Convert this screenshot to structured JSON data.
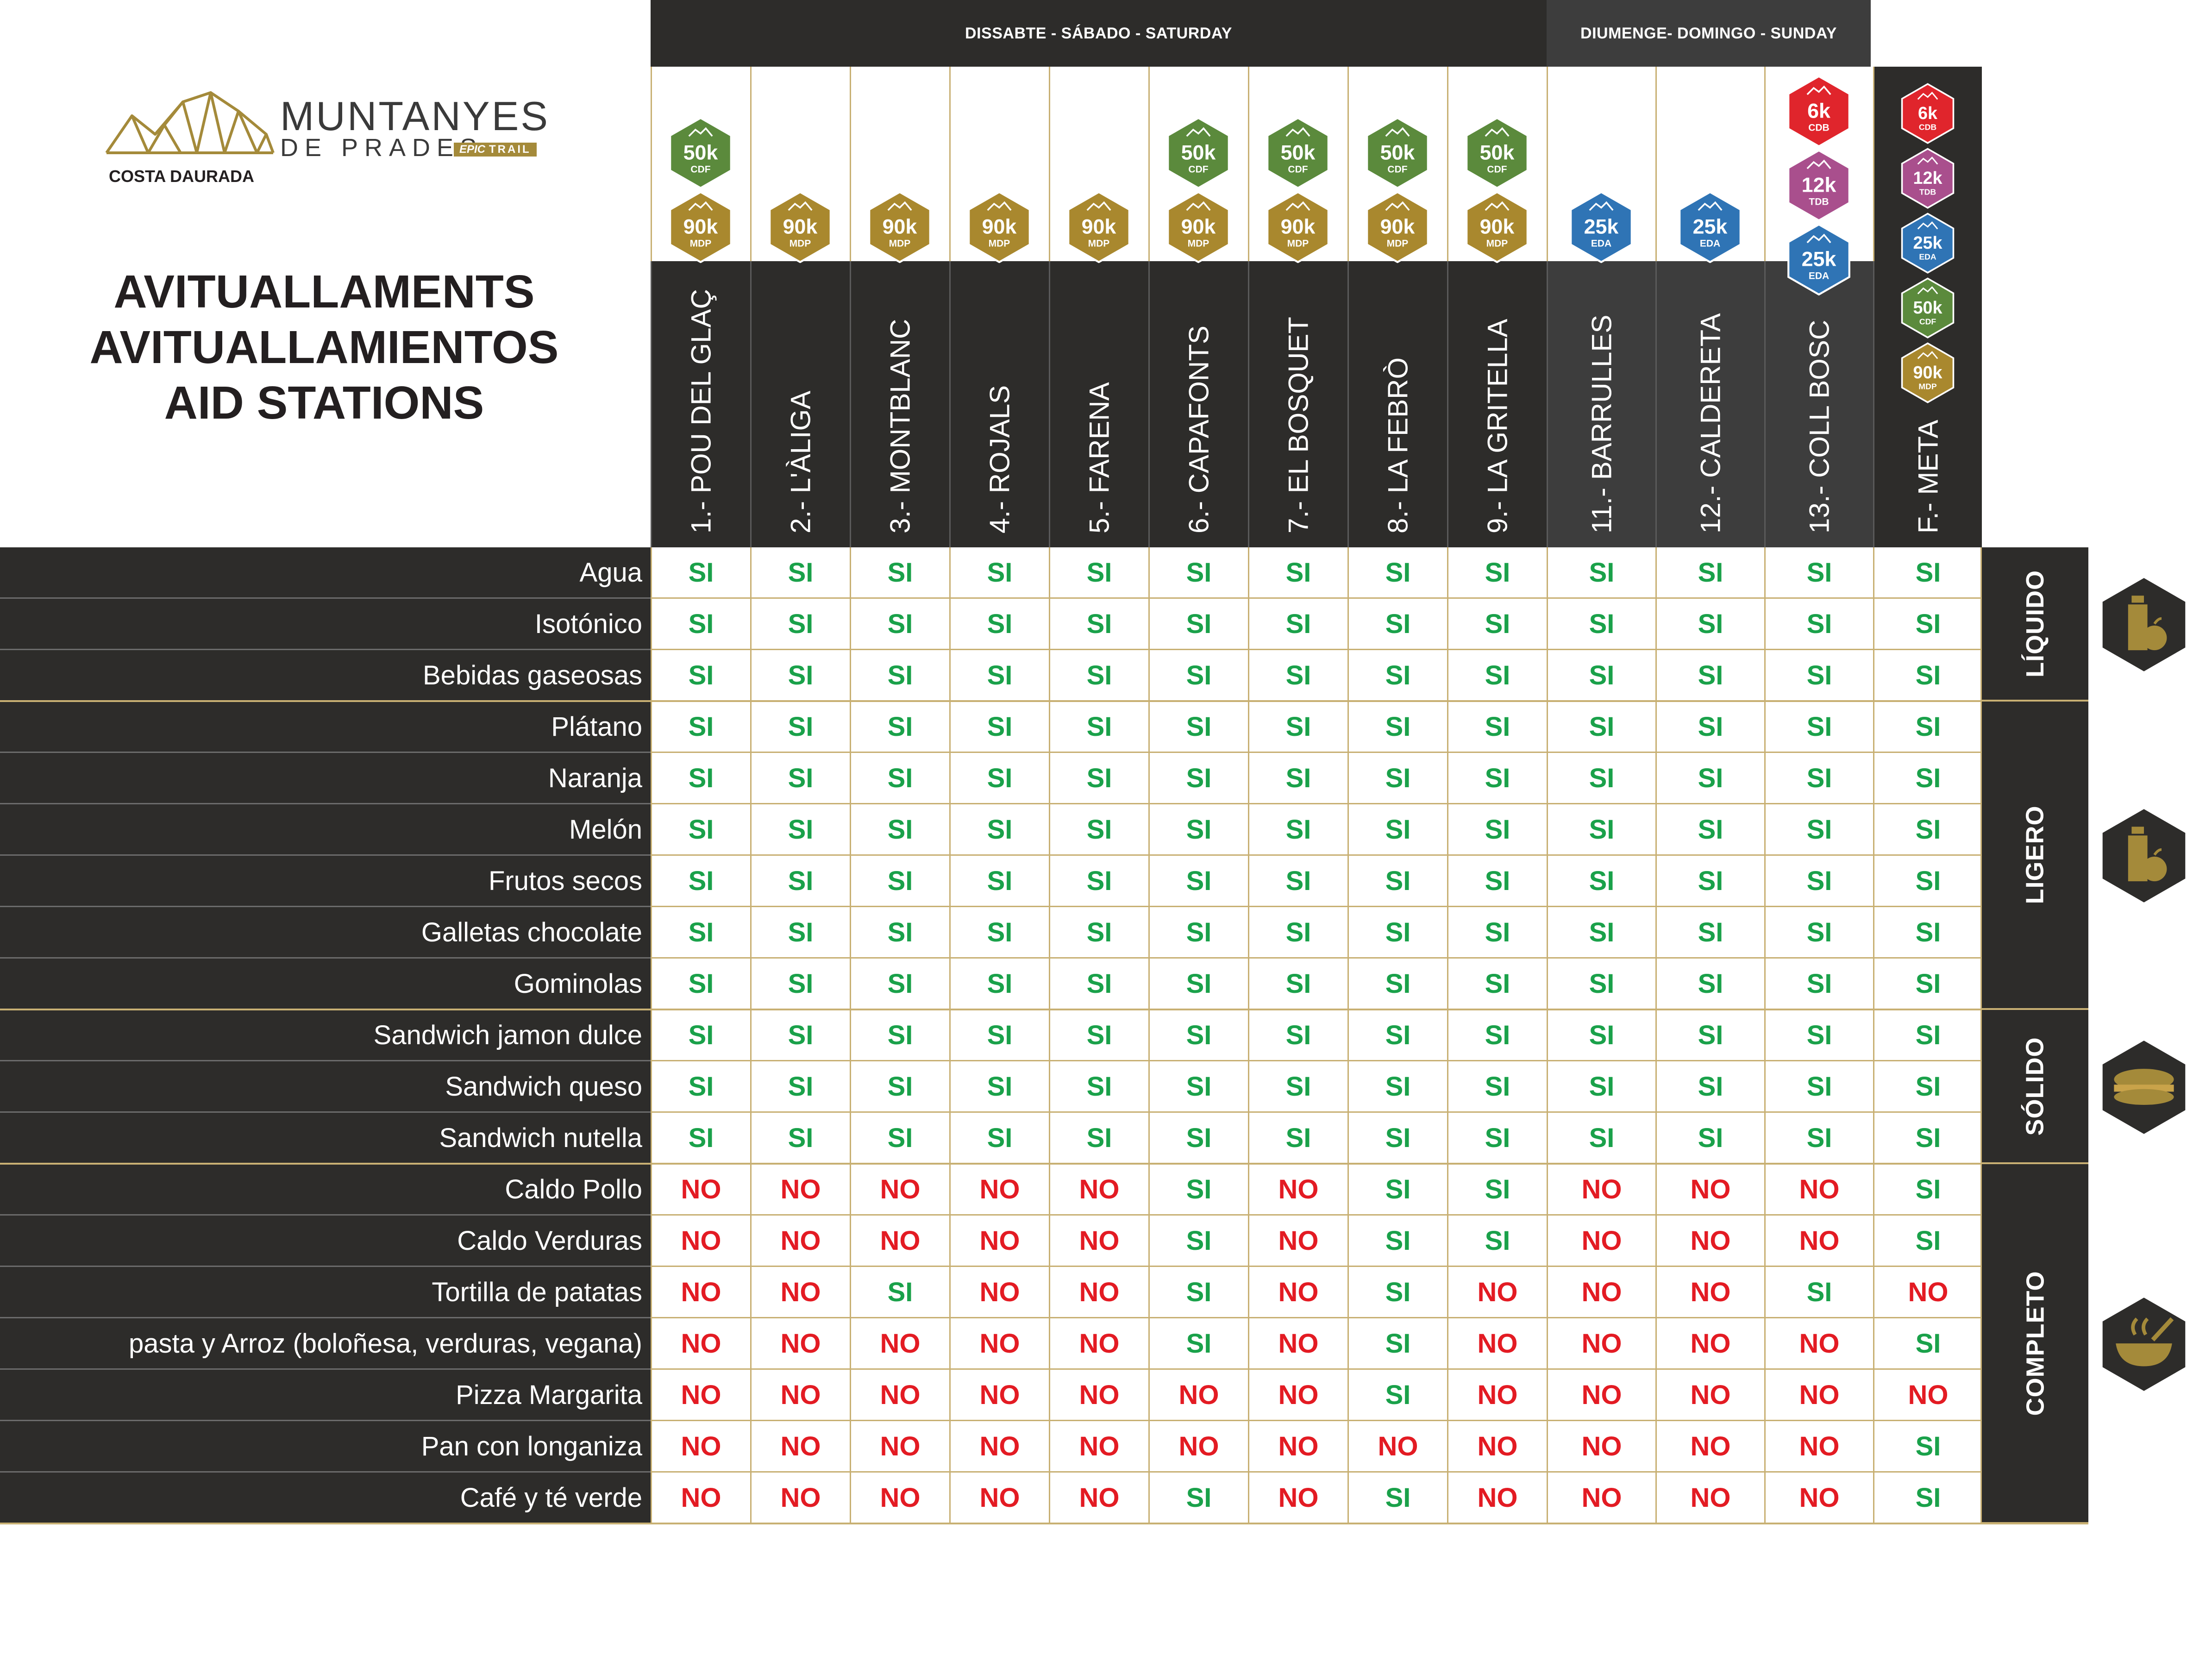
{
  "logo": {
    "brand_line1": "MUNTANYES",
    "brand_line2": "DE PRADES",
    "badge_epic": "EPIC",
    "badge_trail": "TRAIL",
    "region": "COSTA DAURADA"
  },
  "title": {
    "line1": "AVITUALLAMENTS",
    "line2": "AVITUALLAMIENTOS",
    "line3": "AID STATIONS"
  },
  "days": {
    "saturday": "DISSABTE - SÁBADO - SATURDAY",
    "sunday": "DIUMENGE- DOMINGO - SUNDAY"
  },
  "colors": {
    "dark": "#2d2c2a",
    "sunday_gray": "#3d3d3d",
    "gold": "#a48a3a",
    "gridline": "#c8b073",
    "si_green": "#1aa14a",
    "no_red": "#e31b23",
    "race_50k": "#5b8a3c",
    "race_90k": "#a9882e",
    "race_25k": "#2f74b5",
    "race_12k": "#a94f8d",
    "race_6k": "#e0252c"
  },
  "races": {
    "6k": {
      "label": "6k",
      "code": "CDB"
    },
    "12k": {
      "label": "12k",
      "code": "TDB"
    },
    "25k": {
      "label": "25k",
      "code": "EDA"
    },
    "50k": {
      "label": "50k",
      "code": "CDF"
    },
    "90k": {
      "label": "90k",
      "code": "MDP"
    }
  },
  "stations": [
    {
      "name": "1.- POU DEL GLAÇ",
      "races": [
        "50k",
        "90k"
      ]
    },
    {
      "name": "2.- L'ÀLIGA",
      "races": [
        "90k"
      ]
    },
    {
      "name": "3.- MONTBLANC",
      "races": [
        "90k"
      ]
    },
    {
      "name": "4.- ROJALS",
      "races": [
        "90k"
      ]
    },
    {
      "name": "5.- FARENA",
      "races": [
        "90k"
      ]
    },
    {
      "name": "6.- CAPAFONTS",
      "races": [
        "50k",
        "90k"
      ]
    },
    {
      "name": "7.- EL BOSQUET",
      "races": [
        "50k",
        "90k"
      ]
    },
    {
      "name": "8.- LA FEBRÒ",
      "races": [
        "50k",
        "90k"
      ]
    },
    {
      "name": "9.- LA GRITELLA",
      "races": [
        "50k",
        "90k"
      ]
    },
    {
      "name": "11.- BARRULLES",
      "races": [
        "25k"
      ]
    },
    {
      "name": "12.- CALDERETA",
      "races": [
        "25k"
      ]
    },
    {
      "name": "13.- COLL  BOSC",
      "races": [
        "6k",
        "12k",
        "25k"
      ]
    },
    {
      "name": "F.- META",
      "races": [
        "6k",
        "12k",
        "25k",
        "50k",
        "90k"
      ]
    }
  ],
  "categories": [
    {
      "label": "LÍQUIDO",
      "icon": "drink-icon",
      "rows": 3
    },
    {
      "label": "LIGERO",
      "icon": "fruit-icon",
      "rows": 6
    },
    {
      "label": "SÓLIDO",
      "icon": "sandwich-icon",
      "rows": 3
    },
    {
      "label": "COMPLETO",
      "icon": "hot-meal-icon",
      "rows": 7
    }
  ],
  "rows": [
    {
      "label": "Agua",
      "values": [
        "SI",
        "SI",
        "SI",
        "SI",
        "SI",
        "SI",
        "SI",
        "SI",
        "SI",
        "SI",
        "SI",
        "SI",
        "SI"
      ]
    },
    {
      "label": "Isotónico",
      "values": [
        "SI",
        "SI",
        "SI",
        "SI",
        "SI",
        "SI",
        "SI",
        "SI",
        "SI",
        "SI",
        "SI",
        "SI",
        "SI"
      ]
    },
    {
      "label": "Bebidas gaseosas",
      "values": [
        "SI",
        "SI",
        "SI",
        "SI",
        "SI",
        "SI",
        "SI",
        "SI",
        "SI",
        "SI",
        "SI",
        "SI",
        "SI"
      ]
    },
    {
      "label": "Plátano",
      "values": [
        "SI",
        "SI",
        "SI",
        "SI",
        "SI",
        "SI",
        "SI",
        "SI",
        "SI",
        "SI",
        "SI",
        "SI",
        "SI"
      ]
    },
    {
      "label": "Naranja",
      "values": [
        "SI",
        "SI",
        "SI",
        "SI",
        "SI",
        "SI",
        "SI",
        "SI",
        "SI",
        "SI",
        "SI",
        "SI",
        "SI"
      ]
    },
    {
      "label": "Melón",
      "values": [
        "SI",
        "SI",
        "SI",
        "SI",
        "SI",
        "SI",
        "SI",
        "SI",
        "SI",
        "SI",
        "SI",
        "SI",
        "SI"
      ]
    },
    {
      "label": "Frutos secos",
      "values": [
        "SI",
        "SI",
        "SI",
        "SI",
        "SI",
        "SI",
        "SI",
        "SI",
        "SI",
        "SI",
        "SI",
        "SI",
        "SI"
      ]
    },
    {
      "label": "Galletas chocolate",
      "values": [
        "SI",
        "SI",
        "SI",
        "SI",
        "SI",
        "SI",
        "SI",
        "SI",
        "SI",
        "SI",
        "SI",
        "SI",
        "SI"
      ]
    },
    {
      "label": "Gominolas",
      "values": [
        "SI",
        "SI",
        "SI",
        "SI",
        "SI",
        "SI",
        "SI",
        "SI",
        "SI",
        "SI",
        "SI",
        "SI",
        "SI"
      ]
    },
    {
      "label": "Sandwich jamon dulce",
      "values": [
        "SI",
        "SI",
        "SI",
        "SI",
        "SI",
        "SI",
        "SI",
        "SI",
        "SI",
        "SI",
        "SI",
        "SI",
        "SI"
      ]
    },
    {
      "label": "Sandwich queso",
      "values": [
        "SI",
        "SI",
        "SI",
        "SI",
        "SI",
        "SI",
        "SI",
        "SI",
        "SI",
        "SI",
        "SI",
        "SI",
        "SI"
      ]
    },
    {
      "label": "Sandwich nutella",
      "values": [
        "SI",
        "SI",
        "SI",
        "SI",
        "SI",
        "SI",
        "SI",
        "SI",
        "SI",
        "SI",
        "SI",
        "SI",
        "SI"
      ]
    },
    {
      "label": "Caldo Pollo",
      "values": [
        "NO",
        "NO",
        "NO",
        "NO",
        "NO",
        "SI",
        "NO",
        "SI",
        "SI",
        "NO",
        "NO",
        "NO",
        "SI"
      ]
    },
    {
      "label": "Caldo Verduras",
      "values": [
        "NO",
        "NO",
        "NO",
        "NO",
        "NO",
        "SI",
        "NO",
        "SI",
        "SI",
        "NO",
        "NO",
        "NO",
        "SI"
      ]
    },
    {
      "label": "Tortilla de patatas",
      "values": [
        "NO",
        "NO",
        "SI",
        "NO",
        "NO",
        "SI",
        "NO",
        "SI",
        "NO",
        "NO",
        "NO",
        "SI",
        "NO"
      ]
    },
    {
      "label": "pasta y Arroz (boloñesa, verduras, vegana)",
      "values": [
        "NO",
        "NO",
        "NO",
        "NO",
        "NO",
        "SI",
        "NO",
        "SI",
        "NO",
        "NO",
        "NO",
        "NO",
        "SI"
      ]
    },
    {
      "label": "Pizza Margarita",
      "values": [
        "NO",
        "NO",
        "NO",
        "NO",
        "NO",
        "NO",
        "NO",
        "SI",
        "NO",
        "NO",
        "NO",
        "NO",
        "NO"
      ]
    },
    {
      "label": "Pan con longaniza",
      "values": [
        "NO",
        "NO",
        "NO",
        "NO",
        "NO",
        "NO",
        "NO",
        "NO",
        "NO",
        "NO",
        "NO",
        "NO",
        "SI"
      ]
    },
    {
      "label": "Café  y té verde",
      "values": [
        "NO",
        "NO",
        "NO",
        "NO",
        "NO",
        "SI",
        "NO",
        "SI",
        "NO",
        "NO",
        "NO",
        "NO",
        "SI"
      ]
    }
  ]
}
